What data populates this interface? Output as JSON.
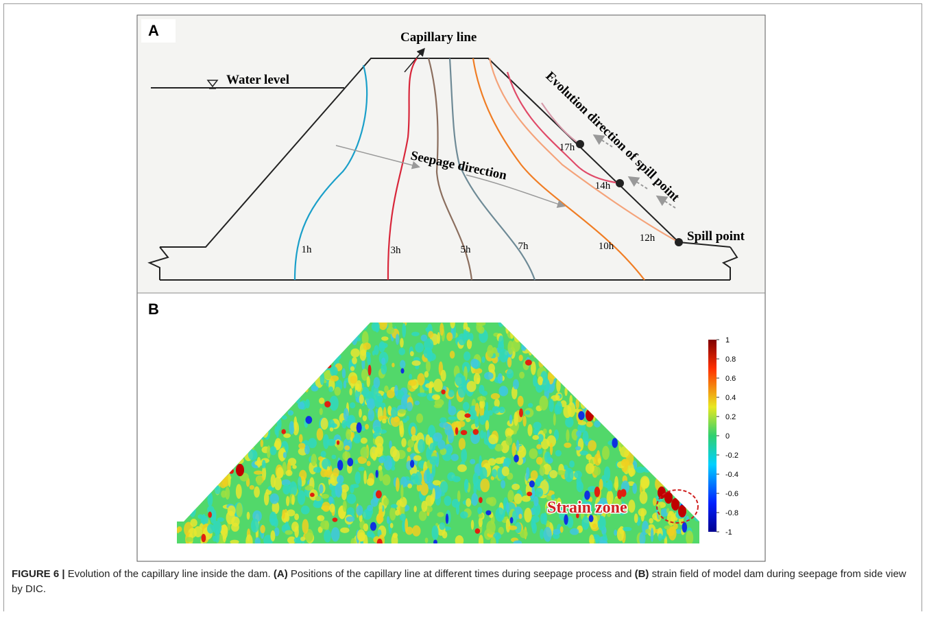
{
  "panel_a": {
    "label": "A",
    "capillary_line": "Capillary line",
    "water_level": "Water level",
    "seepage_direction": "Seepage direction",
    "evolution_direction": "Evolution direction of spill point",
    "spill_point": "Spill point",
    "time_labels": [
      "1h",
      "3h",
      "5h",
      "7h",
      "10h",
      "12h",
      "14h",
      "17h"
    ]
  },
  "panel_b": {
    "label": "B",
    "strain_zone": "Strain zone",
    "colorbar_lim": [
      -1,
      1
    ],
    "colorbar_ticks": [
      1,
      0.8,
      0.6,
      0.4,
      0.2,
      0,
      -0.2,
      -0.4,
      -0.6,
      -0.8,
      -1
    ]
  },
  "caption": {
    "figure": "FIGURE 6 |",
    "title": "Evolution of the capillary line inside the dam.",
    "a": "(A)",
    "a_text": "Positions of the capillary line at different times during seepage process and",
    "b": "(B)",
    "b_text": "strain field of model dam during seepage from side view by DIC."
  }
}
